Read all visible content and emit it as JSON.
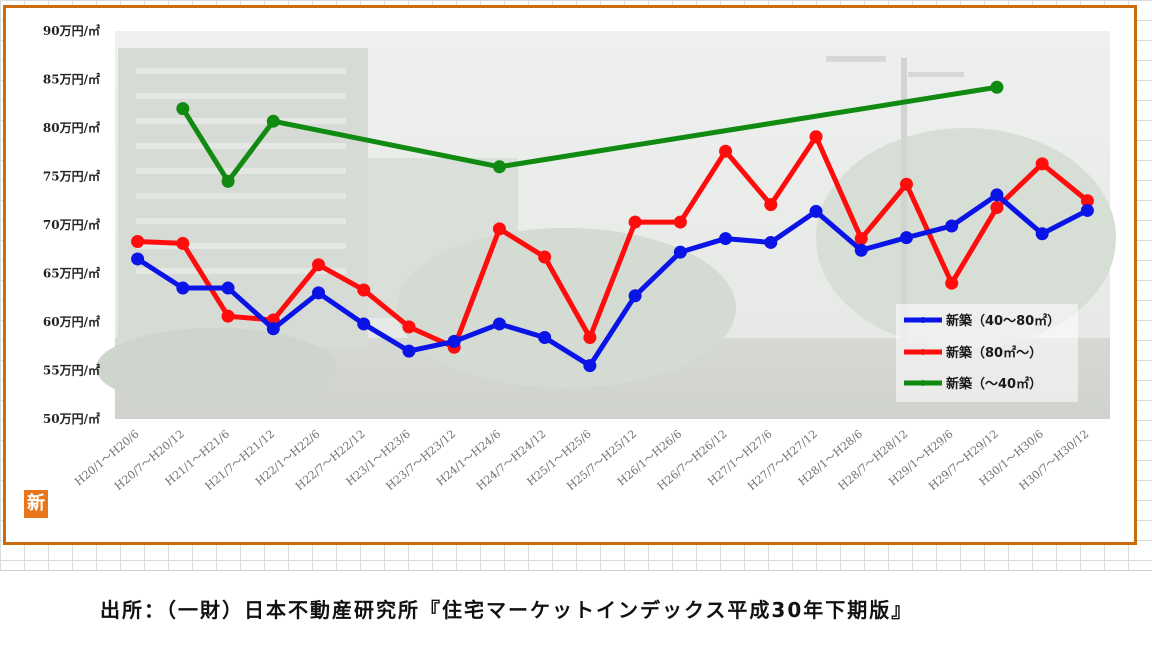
{
  "chart_data": {
    "type": "line",
    "y_unit_labels": [
      "50万円/㎡",
      "55万円/㎡",
      "60万円/㎡",
      "65万円/㎡",
      "70万円/㎡",
      "75万円/㎡",
      "80万円/㎡",
      "85万円/㎡",
      "90万円/㎡"
    ],
    "ylim": [
      50,
      90
    ],
    "y_step": 5,
    "grid": false,
    "legend_position": "bottom-right",
    "categories": [
      "H20/1～H20/6",
      "H20/7～H20/12",
      "H21/1～H21/6",
      "H21/7～H21/12",
      "H22/1～H22/6",
      "H22/7～H22/12",
      "H23/1～H23/6",
      "H23/7～H23/12",
      "H24/1～H24/6",
      "H24/7～H24/12",
      "H25/1～H25/6",
      "H25/7～H25/12",
      "H26/1～H26/6",
      "H26/7～H26/12",
      "H27/1～H27/6",
      "H27/7～H27/12",
      "H28/1～H28/6",
      "H28/7～H28/12",
      "H29/1～H29/6",
      "H29/7～H29/12",
      "H30/1～H30/6",
      "H30/7～H30/12"
    ],
    "series": [
      {
        "name": "新築（40～80㎡）",
        "color": "#0a14e6",
        "values": [
          66.5,
          63.5,
          63.5,
          59.3,
          63,
          59.8,
          57,
          58,
          59.8,
          58.4,
          55.5,
          62.7,
          67.2,
          68.6,
          68.2,
          71.4,
          67.4,
          68.7,
          69.9,
          73.1,
          69.1,
          71.5
        ]
      },
      {
        "name": "新築（80㎡～）",
        "color": "#ff0c0c",
        "values": [
          68.3,
          68.1,
          60.6,
          60.2,
          65.9,
          63.3,
          59.5,
          57.4,
          69.6,
          66.7,
          58.4,
          70.3,
          70.3,
          77.6,
          72.1,
          79.1,
          68.6,
          74.2,
          64,
          71.8,
          76.3,
          72.5
        ]
      },
      {
        "name": "新築（～40㎡）",
        "color": "#108a10",
        "values": [
          null,
          82,
          74.5,
          80.7,
          null,
          null,
          null,
          null,
          76,
          null,
          null,
          null,
          null,
          null,
          null,
          null,
          null,
          null,
          null,
          84.2,
          null,
          null
        ]
      }
    ]
  },
  "source_note": "出所：（一財）日本不動産研究所『住宅マーケットインデックス平成30年下期版』",
  "badge_text": "新"
}
